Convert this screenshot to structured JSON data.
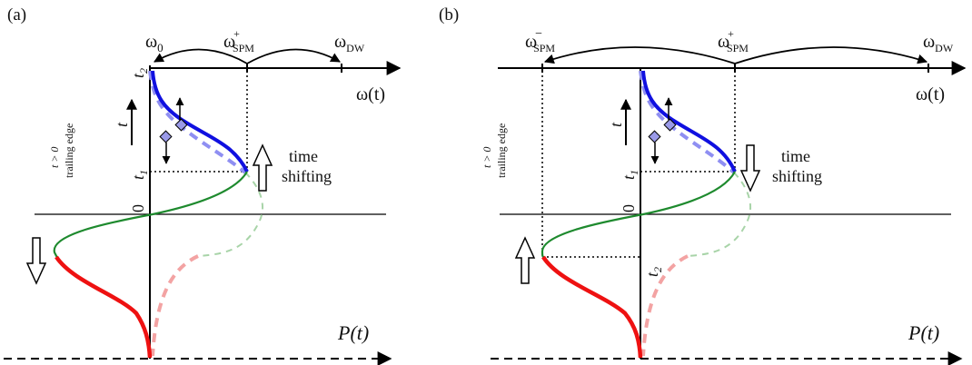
{
  "colors": {
    "axis": "#000000",
    "blue": "#1010e0",
    "blue_faded": "#8f8ff2",
    "green": "#1e8a2e",
    "green_faded": "#a8d4a8",
    "red": "#ee1111",
    "red_faded": "#f3a3a3",
    "diamond_fill": "#9a9ae8"
  },
  "panel_a": {
    "tag": "(a)",
    "omega_0": "ω",
    "omega_0_sub": "0",
    "omega_spm_plus": "ω",
    "omega_spm_plus_sup": "+",
    "omega_spm_plus_sub": "SPM",
    "omega_dw": "ω",
    "omega_dw_sub": "DW",
    "omega_t": "ω(t)",
    "t2": "t",
    "t2_sub": "2",
    "t1": "t",
    "t1_sub": "1",
    "zero": "0",
    "t_arrow": "t",
    "side_label_1": "t > 0",
    "side_label_2": "trailing edge",
    "time_shifting_1": "time",
    "time_shifting_2": "shifting",
    "p_t": "P(t)"
  },
  "panel_b": {
    "tag": "(b)",
    "omega_spm_minus": "ω",
    "omega_spm_minus_sup": "−",
    "omega_spm_minus_sub": "SPM",
    "omega_spm_plus": "ω",
    "omega_spm_plus_sup": "+",
    "omega_spm_plus_sub": "SPM",
    "omega_dw": "ω",
    "omega_dw_sub": "DW",
    "omega_t": "ω(t)",
    "t1": "t",
    "t1_sub": "1",
    "t2": "t",
    "t2_sub": "2",
    "zero": "0",
    "t_arrow": "t",
    "side_label_1": "t > 0",
    "side_label_2": "trailing edge",
    "time_shifting_1": "time",
    "time_shifting_2": "shifting",
    "p_t": "P(t)"
  }
}
